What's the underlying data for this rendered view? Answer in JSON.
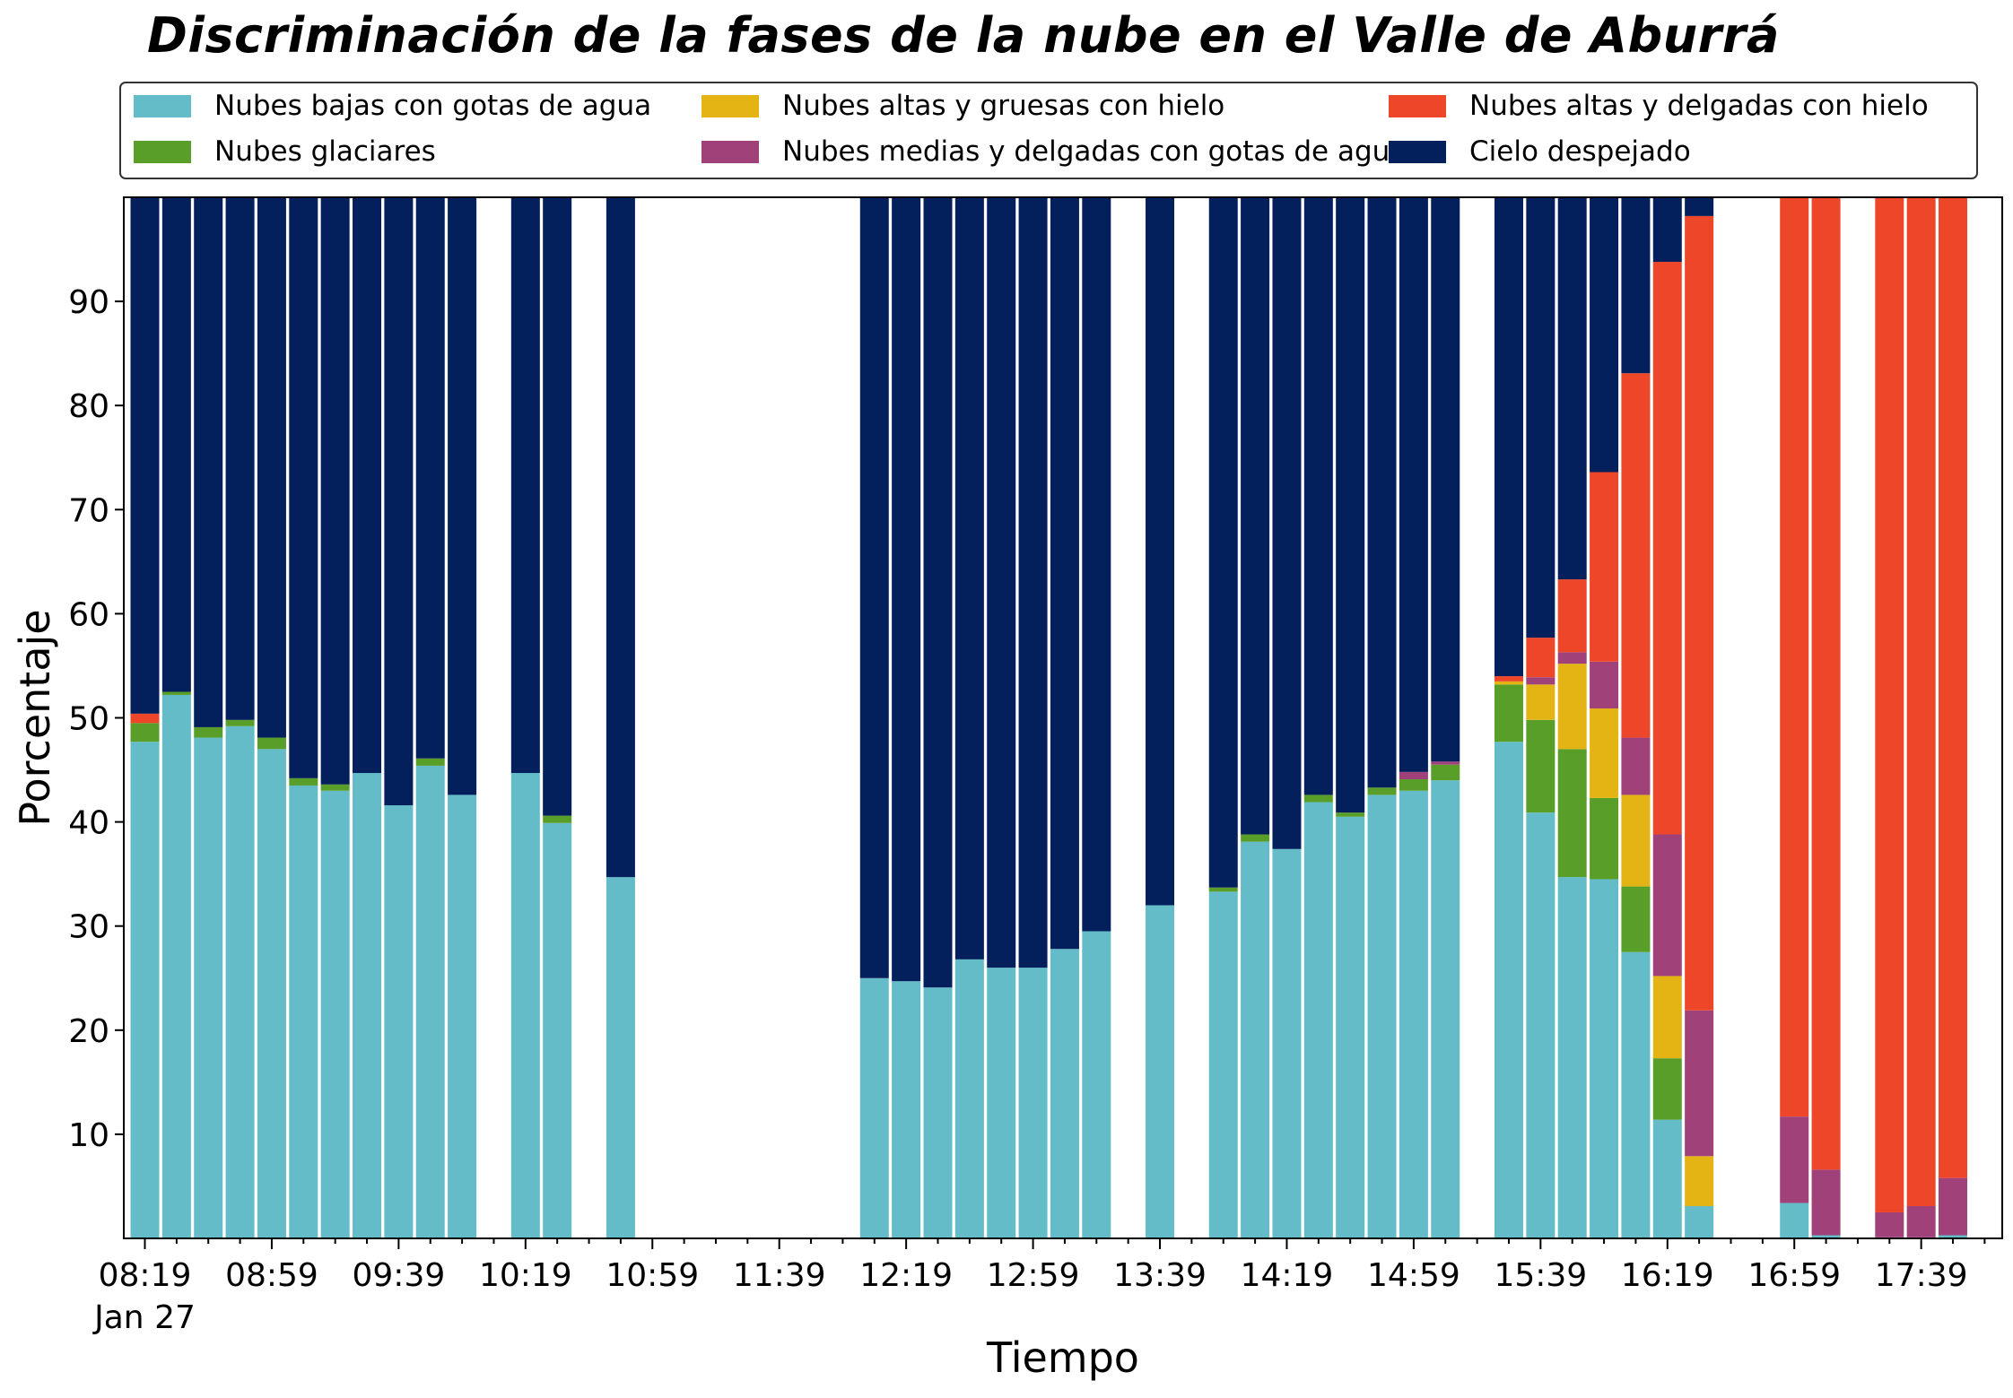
{
  "chart_data": {
    "type": "bar",
    "stacked": true,
    "title": "Discriminación de la fases de la nube en el Valle de Aburrá",
    "xlabel": "Tiempo",
    "ylabel": "Porcentaje",
    "ylim": [
      0,
      100
    ],
    "yticks": [
      10,
      20,
      30,
      40,
      50,
      60,
      70,
      80,
      90
    ],
    "xticks": [
      "08:19",
      "08:59",
      "09:39",
      "10:19",
      "10:59",
      "11:39",
      "12:19",
      "12:59",
      "13:39",
      "14:19",
      "14:59",
      "15:39",
      "16:19",
      "16:59",
      "17:39"
    ],
    "x_date_label": "Jan 27",
    "legend_position": "top",
    "grid": false,
    "x": [
      "08:19",
      "08:29",
      "08:39",
      "08:49",
      "08:59",
      "09:09",
      "09:19",
      "09:29",
      "09:39",
      "09:49",
      "09:59",
      "10:09",
      "10:19",
      "10:29",
      "10:39",
      "10:49",
      "10:59",
      "11:09",
      "11:19",
      "11:29",
      "11:39",
      "11:49",
      "11:59",
      "12:09",
      "12:19",
      "12:29",
      "12:39",
      "12:49",
      "12:59",
      "13:09",
      "13:19",
      "13:29",
      "13:39",
      "13:49",
      "13:59",
      "14:09",
      "14:19",
      "14:29",
      "14:39",
      "14:49",
      "14:59",
      "15:09",
      "15:19",
      "15:29",
      "15:39",
      "15:49",
      "15:59",
      "16:09",
      "16:19",
      "16:29",
      "16:39",
      "16:49",
      "16:59",
      "17:09",
      "17:19",
      "17:29",
      "17:39",
      "17:49"
    ],
    "series": [
      {
        "name": "Nubes bajas con gotas de agua",
        "color": "#63bcc8",
        "values": [
          47.7,
          52.2,
          48.1,
          49.2,
          47.0,
          43.5,
          43.0,
          44.7,
          41.6,
          45.4,
          42.6,
          null,
          44.7,
          39.9,
          null,
          34.7,
          null,
          null,
          null,
          null,
          null,
          null,
          null,
          25.0,
          24.7,
          24.1,
          26.8,
          26.0,
          26.0,
          27.8,
          29.5,
          null,
          32.0,
          null,
          33.3,
          38.1,
          37.4,
          41.9,
          40.5,
          42.6,
          43.0,
          44.0,
          null,
          47.7,
          40.9,
          34.7,
          34.5,
          27.5,
          11.4,
          3.1,
          null,
          null,
          3.4,
          0.3,
          null,
          0.1,
          0.1,
          0.3
        ]
      },
      {
        "name": "Nubes glaciares",
        "color": "#5a9e2a",
        "values": [
          1.8,
          0.3,
          1.0,
          0.6,
          1.1,
          0.7,
          0.6,
          0,
          0,
          0.7,
          0,
          null,
          0,
          0.7,
          null,
          0,
          null,
          null,
          null,
          null,
          null,
          null,
          null,
          0,
          0,
          0,
          0,
          0,
          0,
          0,
          0,
          null,
          0,
          null,
          0.4,
          0.7,
          0,
          0.7,
          0.4,
          0.7,
          1.1,
          1.5,
          null,
          5.5,
          8.9,
          12.3,
          7.8,
          6.3,
          5.9,
          0,
          null,
          null,
          0,
          0,
          null,
          0,
          0,
          0
        ]
      },
      {
        "name": "Nubes altas y gruesas con hielo",
        "color": "#e3b414",
        "values": [
          0,
          0,
          0,
          0,
          0,
          0,
          0,
          0,
          0,
          0,
          0,
          null,
          0,
          0,
          null,
          0,
          null,
          null,
          null,
          null,
          null,
          null,
          null,
          0,
          0,
          0,
          0,
          0,
          0,
          0,
          0,
          null,
          0,
          null,
          0,
          0,
          0,
          0,
          0,
          0,
          0,
          0,
          null,
          0.3,
          3.4,
          8.2,
          8.6,
          8.8,
          7.9,
          4.8,
          null,
          null,
          0,
          0,
          null,
          0,
          0,
          0
        ]
      },
      {
        "name": "Nubes medias y delgadas con gotas de agua",
        "color": "#a0417a",
        "values": [
          0,
          0,
          0,
          0,
          0,
          0,
          0,
          0,
          0,
          0,
          0,
          null,
          0,
          0,
          null,
          0,
          null,
          null,
          null,
          null,
          null,
          null,
          null,
          0,
          0,
          0,
          0,
          0,
          0,
          0,
          0,
          null,
          0,
          null,
          0,
          0,
          0,
          0,
          0,
          0,
          0.7,
          0.3,
          null,
          0,
          0.7,
          1.1,
          4.5,
          5.5,
          13.6,
          14.0,
          null,
          null,
          8.3,
          6.3,
          null,
          2.4,
          3.0,
          5.5
        ]
      },
      {
        "name": "Nubes altas y delgadas con hielo",
        "color": "#ed4629",
        "values": [
          0.9,
          0,
          0,
          0,
          0,
          0,
          0,
          0,
          0,
          0,
          0,
          null,
          0,
          0,
          null,
          0,
          null,
          null,
          null,
          null,
          null,
          null,
          null,
          0,
          0,
          0,
          0,
          0,
          0,
          0,
          0,
          null,
          0,
          null,
          0,
          0,
          0,
          0,
          0,
          0,
          0,
          0,
          null,
          0.5,
          3.8,
          7.0,
          18.2,
          35.0,
          55.0,
          76.3,
          null,
          null,
          88.3,
          93.4,
          null,
          97.5,
          96.9,
          94.2
        ]
      },
      {
        "name": "Cielo despejado",
        "color": "#031f5c",
        "values": [
          49.6,
          47.5,
          50.9,
          50.2,
          51.9,
          55.8,
          56.4,
          55.3,
          58.4,
          53.9,
          57.4,
          null,
          55.3,
          59.4,
          null,
          65.3,
          null,
          null,
          null,
          null,
          null,
          null,
          null,
          75.0,
          75.3,
          75.9,
          73.2,
          74.0,
          74.0,
          72.2,
          70.5,
          null,
          68.0,
          null,
          66.3,
          61.2,
          62.6,
          57.4,
          59.1,
          56.7,
          55.2,
          54.2,
          null,
          46.0,
          42.3,
          36.7,
          26.4,
          16.9,
          6.2,
          1.8,
          null,
          null,
          0,
          0,
          null,
          0,
          0,
          0
        ]
      }
    ]
  }
}
